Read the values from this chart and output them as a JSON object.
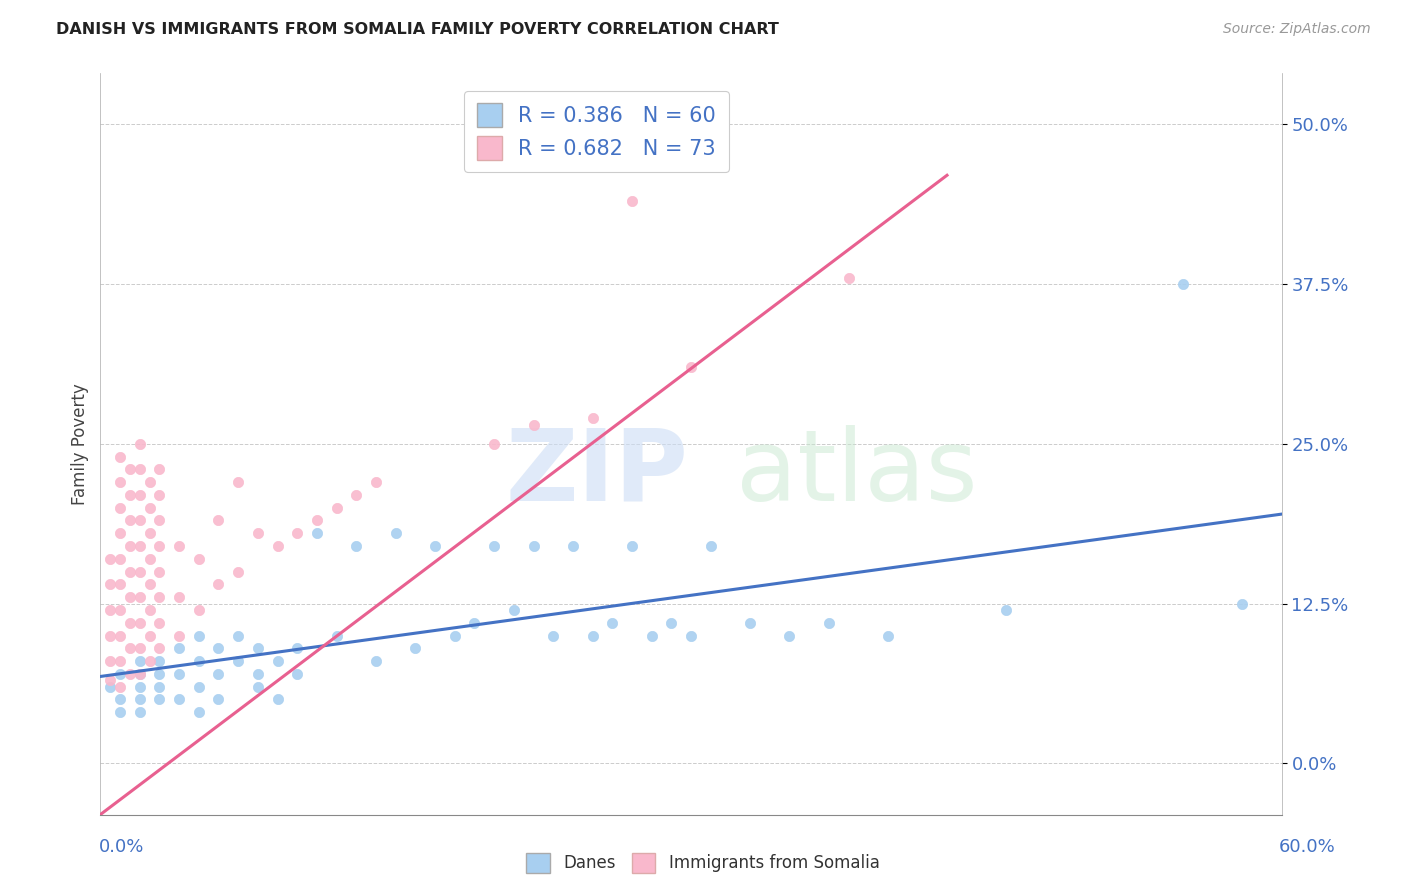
{
  "title": "DANISH VS IMMIGRANTS FROM SOMALIA FAMILY POVERTY CORRELATION CHART",
  "source": "Source: ZipAtlas.com",
  "ylabel": "Family Poverty",
  "xlim": [
    0.0,
    0.6
  ],
  "ylim": [
    -0.04,
    0.54
  ],
  "ytick_values": [
    0.0,
    0.125,
    0.25,
    0.375,
    0.5
  ],
  "danes_color": "#a8cff0",
  "somalia_color": "#f9b8cc",
  "danes_line_color": "#4472c4",
  "somalia_line_color": "#e86090",
  "danes_R": 0.386,
  "danes_N": 60,
  "somalia_R": 0.682,
  "somalia_N": 73,
  "danes_line": [
    [
      0.0,
      0.068
    ],
    [
      0.6,
      0.195
    ]
  ],
  "somalia_line": [
    [
      0.0,
      -0.04
    ],
    [
      0.43,
      0.46
    ]
  ],
  "danes_scatter": [
    [
      0.005,
      0.06
    ],
    [
      0.01,
      0.07
    ],
    [
      0.01,
      0.05
    ],
    [
      0.01,
      0.04
    ],
    [
      0.02,
      0.06
    ],
    [
      0.02,
      0.08
    ],
    [
      0.02,
      0.07
    ],
    [
      0.02,
      0.05
    ],
    [
      0.02,
      0.04
    ],
    [
      0.03,
      0.08
    ],
    [
      0.03,
      0.06
    ],
    [
      0.03,
      0.05
    ],
    [
      0.03,
      0.07
    ],
    [
      0.04,
      0.09
    ],
    [
      0.04,
      0.07
    ],
    [
      0.04,
      0.05
    ],
    [
      0.05,
      0.08
    ],
    [
      0.05,
      0.06
    ],
    [
      0.05,
      0.04
    ],
    [
      0.05,
      0.1
    ],
    [
      0.06,
      0.09
    ],
    [
      0.06,
      0.07
    ],
    [
      0.06,
      0.05
    ],
    [
      0.07,
      0.08
    ],
    [
      0.07,
      0.1
    ],
    [
      0.08,
      0.06
    ],
    [
      0.08,
      0.09
    ],
    [
      0.08,
      0.07
    ],
    [
      0.09,
      0.08
    ],
    [
      0.09,
      0.05
    ],
    [
      0.1,
      0.09
    ],
    [
      0.1,
      0.07
    ],
    [
      0.11,
      0.18
    ],
    [
      0.12,
      0.1
    ],
    [
      0.13,
      0.17
    ],
    [
      0.14,
      0.08
    ],
    [
      0.15,
      0.18
    ],
    [
      0.16,
      0.09
    ],
    [
      0.17,
      0.17
    ],
    [
      0.18,
      0.1
    ],
    [
      0.19,
      0.11
    ],
    [
      0.2,
      0.17
    ],
    [
      0.21,
      0.12
    ],
    [
      0.22,
      0.17
    ],
    [
      0.23,
      0.1
    ],
    [
      0.24,
      0.17
    ],
    [
      0.25,
      0.1
    ],
    [
      0.26,
      0.11
    ],
    [
      0.27,
      0.17
    ],
    [
      0.28,
      0.1
    ],
    [
      0.29,
      0.11
    ],
    [
      0.3,
      0.1
    ],
    [
      0.31,
      0.17
    ],
    [
      0.33,
      0.11
    ],
    [
      0.35,
      0.1
    ],
    [
      0.37,
      0.11
    ],
    [
      0.4,
      0.1
    ],
    [
      0.46,
      0.12
    ],
    [
      0.55,
      0.375
    ],
    [
      0.58,
      0.125
    ]
  ],
  "somalia_scatter": [
    [
      0.005,
      0.065
    ],
    [
      0.005,
      0.08
    ],
    [
      0.005,
      0.1
    ],
    [
      0.005,
      0.12
    ],
    [
      0.005,
      0.14
    ],
    [
      0.005,
      0.16
    ],
    [
      0.01,
      0.06
    ],
    [
      0.01,
      0.08
    ],
    [
      0.01,
      0.1
    ],
    [
      0.01,
      0.12
    ],
    [
      0.01,
      0.14
    ],
    [
      0.01,
      0.16
    ],
    [
      0.01,
      0.18
    ],
    [
      0.01,
      0.2
    ],
    [
      0.01,
      0.22
    ],
    [
      0.01,
      0.24
    ],
    [
      0.015,
      0.07
    ],
    [
      0.015,
      0.09
    ],
    [
      0.015,
      0.11
    ],
    [
      0.015,
      0.13
    ],
    [
      0.015,
      0.15
    ],
    [
      0.015,
      0.17
    ],
    [
      0.015,
      0.19
    ],
    [
      0.015,
      0.21
    ],
    [
      0.015,
      0.23
    ],
    [
      0.02,
      0.07
    ],
    [
      0.02,
      0.09
    ],
    [
      0.02,
      0.11
    ],
    [
      0.02,
      0.13
    ],
    [
      0.02,
      0.15
    ],
    [
      0.02,
      0.17
    ],
    [
      0.02,
      0.19
    ],
    [
      0.02,
      0.21
    ],
    [
      0.02,
      0.23
    ],
    [
      0.02,
      0.25
    ],
    [
      0.025,
      0.08
    ],
    [
      0.025,
      0.1
    ],
    [
      0.025,
      0.12
    ],
    [
      0.025,
      0.14
    ],
    [
      0.025,
      0.16
    ],
    [
      0.025,
      0.18
    ],
    [
      0.025,
      0.2
    ],
    [
      0.025,
      0.22
    ],
    [
      0.03,
      0.09
    ],
    [
      0.03,
      0.11
    ],
    [
      0.03,
      0.13
    ],
    [
      0.03,
      0.15
    ],
    [
      0.03,
      0.17
    ],
    [
      0.03,
      0.19
    ],
    [
      0.03,
      0.21
    ],
    [
      0.03,
      0.23
    ],
    [
      0.04,
      0.1
    ],
    [
      0.04,
      0.13
    ],
    [
      0.04,
      0.17
    ],
    [
      0.05,
      0.12
    ],
    [
      0.05,
      0.16
    ],
    [
      0.06,
      0.14
    ],
    [
      0.06,
      0.19
    ],
    [
      0.07,
      0.15
    ],
    [
      0.07,
      0.22
    ],
    [
      0.08,
      0.18
    ],
    [
      0.09,
      0.17
    ],
    [
      0.1,
      0.18
    ],
    [
      0.11,
      0.19
    ],
    [
      0.12,
      0.2
    ],
    [
      0.13,
      0.21
    ],
    [
      0.14,
      0.22
    ],
    [
      0.2,
      0.25
    ],
    [
      0.22,
      0.265
    ],
    [
      0.25,
      0.27
    ],
    [
      0.3,
      0.31
    ],
    [
      0.38,
      0.38
    ],
    [
      0.27,
      0.44
    ]
  ]
}
